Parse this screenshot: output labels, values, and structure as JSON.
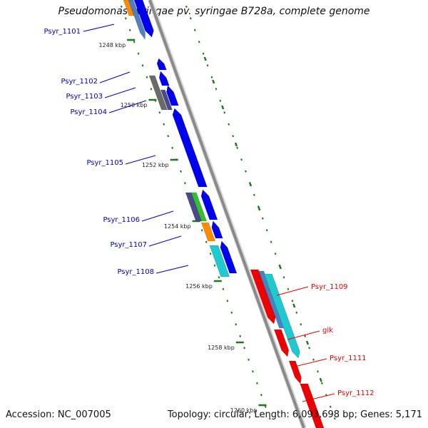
{
  "title": "Pseudomonas syringae pv. syringae B728a, complete genome",
  "footer": {
    "accession": "Accession: NC_007005",
    "stats": "Topology: circular; Length: 6,093,698 bp; Genes: 5,171"
  },
  "colors": {
    "reverse_label": "#0000cc",
    "forward_label": "#ee0000",
    "backbone": "#8a8a8a",
    "tick": "#1a7a1a",
    "orange": "#ff8c00",
    "steelblue": "#4f7fbf",
    "blue": "#0000ee",
    "gray": "#6a6a6a",
    "slate": "#4a4a8a",
    "green": "#30c030",
    "cyan": "#20c8d0",
    "red": "#ee0000"
  },
  "ticks": [
    "1248 kbp",
    "1250 kbp",
    "1252 kbp",
    "1254 kbp",
    "1256 kbp",
    "1258 kbp",
    "1260 kbp"
  ],
  "reverse_genes": [
    "Psyr_1101",
    "Psyr_1102",
    "Psyr_1103",
    "Psyr_1104",
    "Psyr_1105",
    "Psyr_1106",
    "Psyr_1107",
    "Psyr_1108"
  ],
  "forward_genes": [
    "Psyr_1109",
    "glk",
    "Psyr_1111",
    "Psyr_1112"
  ]
}
